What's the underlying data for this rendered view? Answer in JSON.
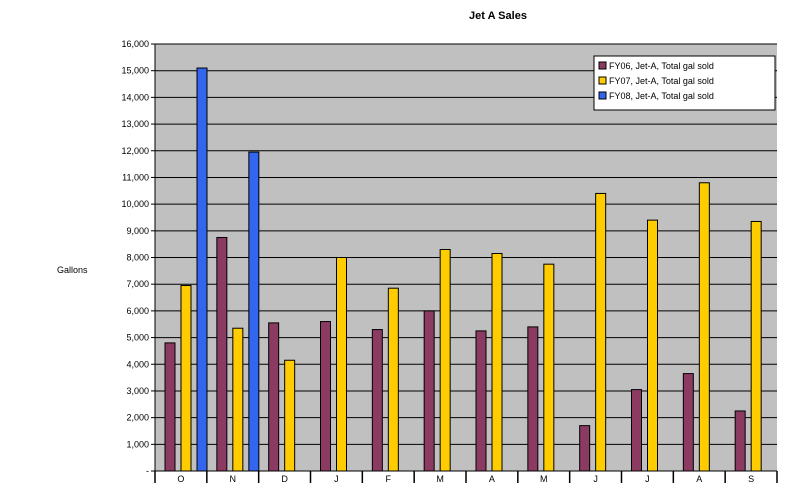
{
  "chart_data": {
    "type": "bar",
    "title": "Jet A Sales",
    "xlabel": "",
    "ylabel": "Gallons",
    "categories": [
      "O",
      "N",
      "D",
      "J",
      "F",
      "M",
      "A",
      "M",
      "J",
      "J",
      "A",
      "S"
    ],
    "ylim": [
      0,
      16000
    ],
    "ytick_values": [
      0,
      1000,
      2000,
      3000,
      4000,
      5000,
      6000,
      7000,
      8000,
      9000,
      10000,
      11000,
      12000,
      13000,
      14000,
      15000,
      16000
    ],
    "ytick_labels": [
      "-",
      "1,000",
      "2,000",
      "3,000",
      "4,000",
      "5,000",
      "6,000",
      "7,000",
      "8,000",
      "9,000",
      "10,000",
      "11,000",
      "12,000",
      "13,000",
      "14,000",
      "15,000",
      "16,000"
    ],
    "series": [
      {
        "name": "FY06, Jet-A, Total gal sold",
        "color": "#8b3a62",
        "values": [
          4800,
          8750,
          5550,
          5600,
          5300,
          6000,
          5250,
          5400,
          1700,
          3050,
          3650,
          2250
        ]
      },
      {
        "name": "FY07, Jet-A, Total gal sold",
        "color": "#ffcc00",
        "values": [
          6950,
          5350,
          4150,
          8000,
          6850,
          8300,
          8150,
          7750,
          10400,
          9400,
          10800,
          9350
        ]
      },
      {
        "name": "FY08, Jet-A, Total gal sold",
        "color": "#3366ee",
        "values": [
          15100,
          11950,
          null,
          null,
          null,
          null,
          null,
          null,
          null,
          null,
          null,
          null
        ]
      }
    ],
    "grid": true,
    "plot_background": "#c0c0c0",
    "legend_position": "top-right"
  }
}
